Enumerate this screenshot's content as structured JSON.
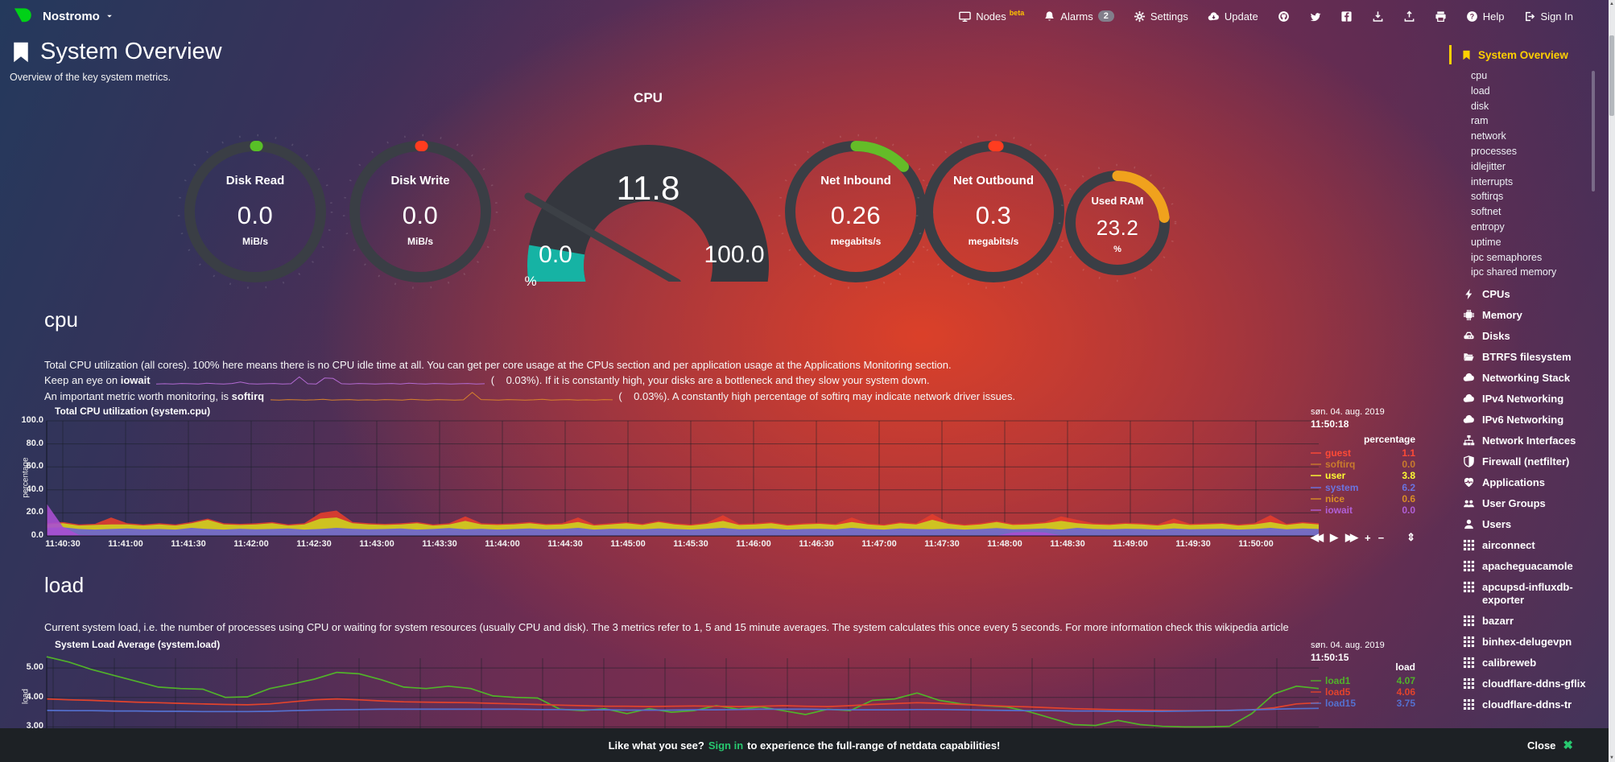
{
  "topbar": {
    "hostname": "Nostromo",
    "nodes_label": "Nodes",
    "nodes_beta": "beta",
    "alarms_label": "Alarms",
    "alarms_count": "2",
    "settings_label": "Settings",
    "update_label": "Update",
    "help_label": "Help",
    "signin_label": "Sign In"
  },
  "header": {
    "title": "System Overview",
    "subtitle": "Overview of the key system metrics."
  },
  "gauges": {
    "disk_read": {
      "label": "Disk Read",
      "value": "0.0",
      "unit": "MiB/s",
      "pct": 0.6,
      "color": "#58c027"
    },
    "disk_write": {
      "label": "Disk Write",
      "value": "0.0",
      "unit": "MiB/s",
      "pct": 0.6,
      "color": "#ff3c1f"
    },
    "cpu": {
      "title": "CPU",
      "value": "11.8",
      "min": "0.0",
      "max": "100.0",
      "unit": "%",
      "pct": 11.8,
      "color": "#16b3a4"
    },
    "net_inbound": {
      "label": "Net Inbound",
      "value": "0.26",
      "unit": "megabits/s",
      "pct": 13,
      "color": "#64bc28"
    },
    "net_outbound": {
      "label": "Net Outbound",
      "value": "0.3",
      "unit": "megabits/s",
      "pct": 1.2,
      "color": "#ff3c1f"
    },
    "used_ram": {
      "label": "Used RAM",
      "value": "23.2",
      "unit": "%",
      "pct": 23.2,
      "color": "#f0a21d"
    }
  },
  "cpu_section": {
    "heading": "cpu",
    "desc1": "Total CPU utilization (all cores). 100% here means there is no CPU idle time at all. You can get per core usage at the CPUs section and per application usage at the Applications Monitoring section.",
    "line_iowait": {
      "pre": "Keep an eye on ",
      "word": "iowait",
      "post": "(    0.03%). If it is constantly high, your disks are a bottleneck and they slow your system down.",
      "spark_color": "#b36ad2",
      "spark": [
        0.3,
        0.4,
        0.3,
        0.5,
        0.4,
        0.3,
        0.6,
        0.4,
        0.3,
        0.5,
        1.2,
        0.4,
        0.3,
        0.4,
        0.5,
        0.3,
        0.4,
        3.5,
        0.4,
        0.3,
        3.0,
        2.8,
        0.4,
        0.3,
        0.5,
        0.4,
        0.3,
        0.4,
        0.5,
        0.3,
        0.6,
        0.4,
        0.3,
        0.5,
        0.4,
        0.3,
        0.4,
        0.5,
        0.3,
        0.4
      ]
    },
    "line_softirq": {
      "pre": "An important metric worth monitoring, is ",
      "word": "softirq",
      "post": "(    0.03%). A constantly high percentage of softirq may indicate network driver issues.",
      "spark_color": "#d9822b",
      "spark": [
        0.4,
        0.3,
        0.5,
        0.4,
        0.3,
        0.4,
        0.6,
        0.3,
        0.4,
        0.5,
        0.3,
        0.4,
        0.3,
        0.5,
        0.4,
        0.3,
        0.6,
        0.4,
        0.3,
        0.5,
        0.4,
        0.3,
        0.4,
        3.8,
        0.5,
        0.4,
        0.3,
        0.5,
        0.4,
        0.3,
        0.4,
        0.6,
        0.3,
        0.4,
        0.5,
        0.3,
        0.4,
        0.3,
        0.5,
        0.4
      ]
    }
  },
  "load_section": {
    "heading": "load",
    "desc": "Current system load, i.e. the number of processes using CPU or waiting for system resources (usually CPU and disk). The 3 metrics refer to 1, 5 and 15 minute averages. The system calculates this once every 5 seconds. For more information check this wikipedia article"
  },
  "chart_data": [
    {
      "id": "cpu",
      "type": "area",
      "title": "Total CPU utilization (system.cpu)",
      "date": "søn. 04. aug. 2019",
      "time": "11:50:18",
      "ylabel": "percentage",
      "legend_header": "percentage",
      "ylim": [
        0,
        100
      ],
      "yticks": [
        0,
        20,
        40,
        60,
        80,
        100
      ],
      "ytick_labels": [
        "0.0",
        "20.0",
        "40.0",
        "60.0",
        "80.0",
        "100.0"
      ],
      "grid": {
        "x0": 20,
        "dx": 78
      },
      "xticks": [
        "11:40:30",
        "11:41:00",
        "11:41:30",
        "11:42:00",
        "11:42:30",
        "11:43:00",
        "11:43:30",
        "11:44:00",
        "11:44:30",
        "11:45:00",
        "11:45:30",
        "11:46:00",
        "11:46:30",
        "11:47:00",
        "11:47:30",
        "11:48:00",
        "11:48:30",
        "11:49:00",
        "11:49:30",
        "11:50:00"
      ],
      "legend": [
        {
          "name": "guest",
          "value": "1.1",
          "color": "#ff4a36"
        },
        {
          "name": "softirq",
          "value": "0.0",
          "color": "#c97b2d"
        },
        {
          "name": "user",
          "value": "3.8",
          "color": "#dadc25",
          "bold": true
        },
        {
          "name": "system",
          "value": "6.2",
          "color": "#6a74e0"
        },
        {
          "name": "nice",
          "value": "0.6",
          "color": "#d98e26"
        },
        {
          "name": "iowait",
          "value": "0.0",
          "color": "#b05fd6"
        }
      ],
      "areas": [
        {
          "name": "stack-top-with-guest",
          "color": "#e23e2d",
          "values": [
            11,
            12,
            10,
            10.5,
            16,
            11,
            10,
            11,
            10,
            12,
            15,
            11,
            10.5,
            11,
            12,
            10,
            11,
            20,
            22,
            12,
            11,
            10.5,
            11,
            12,
            10,
            11,
            17,
            11,
            10.5,
            11,
            12,
            10.5,
            11,
            16,
            10,
            11,
            12,
            10.5,
            13,
            11,
            10,
            11.5,
            18,
            10.5,
            11,
            12,
            10,
            11,
            11.5,
            10.5,
            16,
            11,
            10,
            12,
            11,
            19,
            11.5,
            10,
            11,
            13,
            10.5,
            11,
            12,
            17,
            14,
            11,
            10.5,
            11.5,
            11,
            10,
            15,
            10.5,
            11,
            11.5,
            10,
            11,
            18,
            10.5,
            12,
            11
          ]
        },
        {
          "name": "user-plus-system",
          "color": "#cdd020",
          "values": [
            10,
            11,
            9,
            9.5,
            10,
            10,
            9,
            10,
            9,
            11,
            14,
            10,
            9.5,
            10,
            11,
            9,
            10,
            15,
            16,
            11,
            10,
            9.5,
            10,
            11,
            9,
            10,
            13,
            10,
            9.5,
            10,
            11,
            9.5,
            10,
            12,
            9,
            10,
            11,
            9.5,
            12,
            10,
            9,
            10.5,
            13,
            9.5,
            10,
            11,
            9,
            10,
            10.5,
            9.5,
            12,
            10,
            9,
            11,
            10,
            14,
            10.5,
            9,
            10,
            12,
            9.5,
            10,
            11,
            13,
            11,
            10,
            9.5,
            10.5,
            10,
            9,
            11,
            9.5,
            10,
            10.5,
            9,
            10,
            12,
            9.5,
            11,
            10
          ]
        },
        {
          "name": "system",
          "color": "#6a63d4",
          "values": [
            7,
            7.5,
            6,
            5.5,
            6,
            6.5,
            5.8,
            6,
            5.5,
            7,
            6,
            5.5,
            6.2,
            5.8,
            6,
            6.5,
            5.5,
            6,
            7,
            6.2,
            5.8,
            6,
            6.5,
            5.5,
            6,
            6.8,
            5.8,
            6.2,
            5.5,
            6,
            6.5,
            5.8,
            6,
            7,
            5.5,
            6.2,
            6,
            5.8,
            6.5,
            6,
            5.5,
            6.2,
            7,
            5.8,
            6,
            6.5,
            5.5,
            6,
            6.2,
            5.8,
            7,
            6,
            5.5,
            6.5,
            6,
            5.8,
            6.2,
            5.5,
            6,
            6.8,
            5.8,
            6,
            6.5,
            5.5,
            7,
            6,
            5.8,
            6.2,
            6,
            5.5,
            6.5,
            5.8,
            6,
            6.2,
            5.5,
            6,
            7,
            5.8,
            6.5,
            6
          ]
        },
        {
          "name": "iowait",
          "color": "#a94fd0",
          "values": [
            28,
            8,
            1,
            0.5,
            0.4,
            0.3,
            0.4,
            0.3,
            0.3,
            0.4,
            0.3,
            0.3,
            0.4,
            0.3,
            0.3,
            0.4,
            0.3,
            0.3,
            0.4,
            0.3,
            0.3,
            0.4,
            0.3,
            0.3,
            0.4,
            0.3,
            0.3,
            0.4,
            0.3,
            0.3,
            0.4,
            0.3,
            0.3,
            0.4,
            0.3,
            0.3,
            0.4,
            0.3,
            0.3,
            0.4,
            0.3,
            0.3,
            0.4,
            0.3,
            0.3,
            0.4,
            0.3,
            0.3,
            0.4,
            0.3,
            0.3,
            0.4,
            0.3,
            0.3,
            0.4,
            0.3,
            0.3,
            0.4,
            0.3,
            0.3,
            3,
            3.5,
            3,
            0.4,
            0.3,
            0.3,
            0.4,
            0.3,
            0.3,
            0.4,
            0.3,
            0.3,
            0.4,
            0.3,
            0.3,
            0.4,
            0.3,
            0.3,
            0.4,
            0.3
          ]
        }
      ]
    },
    {
      "id": "load",
      "type": "line",
      "title": "System Load Average (system.load)",
      "date": "søn. 04. aug. 2019",
      "time": "11:50:15",
      "ylabel": "load",
      "legend_header": "load",
      "ylim": [
        1.81,
        5.33
      ],
      "yticks": [
        3,
        4,
        5
      ],
      "ytick_labels": [
        "3.00",
        "4.00",
        "5.00"
      ],
      "grid": {
        "x0": 8,
        "dx": 76
      },
      "xticks": [],
      "legend": [
        {
          "name": "load1",
          "value": "4.07",
          "color": "#51b22a"
        },
        {
          "name": "load5",
          "value": "4.06",
          "color": "#e2432c"
        },
        {
          "name": "load15",
          "value": "3.75",
          "color": "#5470cf"
        }
      ],
      "lines": [
        {
          "name": "load1",
          "color": "#51b22a",
          "values": [
            5.38,
            5.2,
            4.95,
            4.75,
            4.55,
            4.35,
            4.3,
            4.28,
            4.0,
            4.02,
            4.3,
            4.45,
            4.62,
            4.85,
            4.8,
            4.6,
            4.35,
            4.3,
            4.38,
            4.3,
            4.05,
            4.0,
            3.98,
            3.6,
            3.55,
            3.62,
            3.45,
            3.62,
            3.5,
            3.55,
            3.72,
            3.6,
            3.68,
            3.55,
            3.42,
            3.6,
            3.55,
            3.9,
            3.95,
            4.15,
            3.9,
            3.78,
            3.72,
            3.68,
            3.52,
            3.3,
            3.08,
            3.05,
            3.22,
            3.08,
            3.02,
            3.0,
            3.0,
            3.02,
            3.45,
            4.12,
            4.38,
            4.3
          ]
        },
        {
          "name": "load5",
          "color": "#e2432c",
          "values": [
            3.95,
            3.92,
            3.9,
            3.87,
            3.84,
            3.82,
            3.8,
            3.78,
            3.76,
            3.75,
            3.78,
            3.85,
            3.92,
            3.95,
            3.92,
            3.88,
            3.85,
            3.84,
            3.83,
            3.82,
            3.8,
            3.78,
            3.76,
            3.74,
            3.72,
            3.7,
            3.7,
            3.69,
            3.7,
            3.71,
            3.7,
            3.69,
            3.7,
            3.72,
            3.7,
            3.69,
            3.72,
            3.76,
            3.79,
            3.82,
            3.8,
            3.76,
            3.73,
            3.7,
            3.68,
            3.65,
            3.62,
            3.6,
            3.58,
            3.57,
            3.56,
            3.55,
            3.55,
            3.56,
            3.58,
            3.65,
            3.78,
            3.82
          ]
        },
        {
          "name": "load15",
          "color": "#5470cf",
          "values": [
            3.56,
            3.55,
            3.55,
            3.54,
            3.54,
            3.53,
            3.53,
            3.52,
            3.52,
            3.52,
            3.53,
            3.55,
            3.57,
            3.58,
            3.59,
            3.6,
            3.6,
            3.6,
            3.6,
            3.6,
            3.6,
            3.6,
            3.59,
            3.59,
            3.58,
            3.58,
            3.57,
            3.57,
            3.57,
            3.58,
            3.58,
            3.59,
            3.6,
            3.6,
            3.6,
            3.59,
            3.58,
            3.58,
            3.58,
            3.59,
            3.59,
            3.58,
            3.57,
            3.56,
            3.55,
            3.55,
            3.54,
            3.54,
            3.53,
            3.53,
            3.53,
            3.54,
            3.55,
            3.56,
            3.58,
            3.6,
            3.62,
            3.63
          ]
        }
      ]
    }
  ],
  "toolbar": {
    "rewind": "◀◀",
    "play": "▶",
    "forward": "▶▶",
    "plus": "+",
    "minus": "−",
    "resize": "⇕"
  },
  "sidebar": {
    "active_label": "System Overview",
    "sub_items": [
      "cpu",
      "load",
      "disk",
      "ram",
      "network",
      "processes",
      "idlejitter",
      "interrupts",
      "softirqs",
      "softnet",
      "entropy",
      "uptime",
      "ipc semaphores",
      "ipc shared memory"
    ],
    "items": [
      {
        "icon": "bolt",
        "label": "CPUs"
      },
      {
        "icon": "chip",
        "label": "Memory"
      },
      {
        "icon": "hdd",
        "label": "Disks"
      },
      {
        "icon": "folder",
        "label": "BTRFS filesystem"
      },
      {
        "icon": "cloud",
        "label": "Networking Stack"
      },
      {
        "icon": "cloud",
        "label": "IPv4 Networking"
      },
      {
        "icon": "cloud",
        "label": "IPv6 Networking"
      },
      {
        "icon": "sitemap",
        "label": "Network Interfaces"
      },
      {
        "icon": "shield",
        "label": "Firewall (netfilter)"
      },
      {
        "icon": "heartbeat",
        "label": "Applications"
      },
      {
        "icon": "users",
        "label": "User Groups"
      },
      {
        "icon": "user",
        "label": "Users"
      },
      {
        "icon": "grid",
        "label": "airconnect"
      },
      {
        "icon": "grid",
        "label": "apacheguacamole"
      },
      {
        "icon": "grid",
        "label": "apcupsd-influxdb-exporter"
      },
      {
        "icon": "grid",
        "label": "bazarr"
      },
      {
        "icon": "grid",
        "label": "binhex-delugevpn"
      },
      {
        "icon": "grid",
        "label": "calibreweb"
      },
      {
        "icon": "grid",
        "label": "cloudflare-ddns-gflix"
      },
      {
        "icon": "grid",
        "label": "cloudflare-ddns-tr"
      }
    ]
  },
  "footer": {
    "pre": "Like what you see?",
    "signin": "Sign in",
    "post": "to experience the full-range of netdata capabilities!",
    "close_label": "Close",
    "close_x": "✖"
  }
}
